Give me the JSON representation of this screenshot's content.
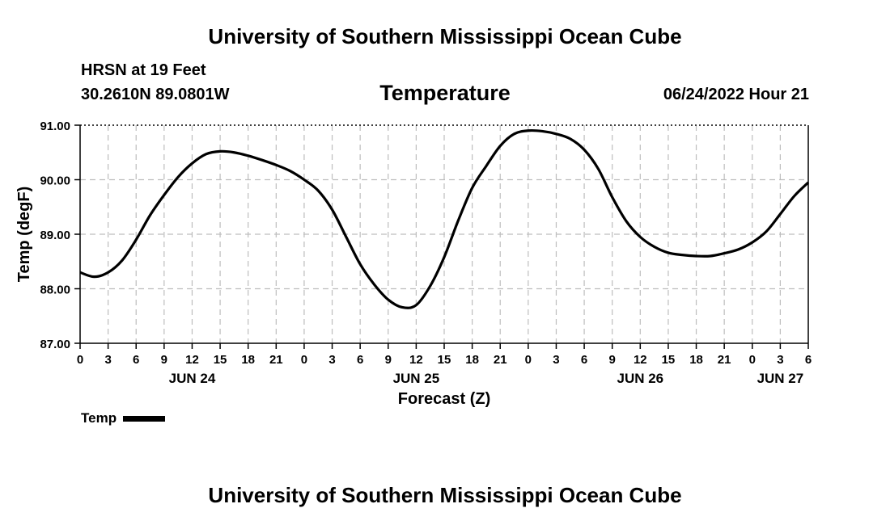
{
  "header": {
    "title": "University of Southern Mississippi Ocean Cube",
    "station": "HRSN at 19 Feet",
    "coords": "30.2610N  89.0801W",
    "chart_title": "Temperature",
    "datetime": "06/24/2022 Hour 21"
  },
  "footer": {
    "title": "University of Southern Mississippi Ocean Cube"
  },
  "legend": {
    "label": "Temp"
  },
  "colors": {
    "line": "#000000",
    "grid": "#bdbdbd",
    "background": "#ffffff"
  },
  "chart_data": {
    "type": "line",
    "title": "Temperature",
    "xlabel": "Forecast (Z)",
    "ylabel": "Temp (degF)",
    "ylim": [
      87.0,
      91.0
    ],
    "yticks": [
      "87.00",
      "88.00",
      "89.00",
      "90.00",
      "91.00"
    ],
    "xlim_hours": [
      0,
      78
    ],
    "x_tick_labels": [
      "0",
      "3",
      "6",
      "9",
      "12",
      "15",
      "18",
      "21",
      "0",
      "3",
      "6",
      "9",
      "12",
      "15",
      "18",
      "21",
      "0",
      "3",
      "6",
      "9",
      "12",
      "15",
      "18",
      "21",
      "0",
      "3",
      "6"
    ],
    "day_labels": [
      {
        "label": "JUN 24",
        "hour": 12
      },
      {
        "label": "JUN 25",
        "hour": 36
      },
      {
        "label": "JUN 26",
        "hour": 60
      },
      {
        "label": "JUN 27",
        "hour": 75
      }
    ],
    "grid": true,
    "series": [
      {
        "name": "Temp",
        "x_hours": [
          0,
          1.5,
          3,
          4.5,
          6,
          7.5,
          9,
          10.5,
          12,
          13.5,
          15,
          16.5,
          18,
          19.5,
          21,
          22.5,
          24,
          25.5,
          27,
          28.5,
          30,
          31.5,
          33,
          34.5,
          36,
          37.5,
          39,
          40.5,
          42,
          43.5,
          45,
          46.5,
          48,
          49.5,
          51,
          52.5,
          54,
          55.5,
          57,
          58.5,
          60,
          61.5,
          63,
          64.5,
          66,
          67.5,
          69,
          70.5,
          72,
          73.5,
          75,
          76.5,
          78
        ],
        "values": [
          88.3,
          88.22,
          88.3,
          88.52,
          88.9,
          89.35,
          89.72,
          90.05,
          90.3,
          90.47,
          90.52,
          90.5,
          90.44,
          90.36,
          90.27,
          90.16,
          90.0,
          89.8,
          89.45,
          88.95,
          88.45,
          88.08,
          87.8,
          87.66,
          87.7,
          88.05,
          88.58,
          89.25,
          89.85,
          90.25,
          90.62,
          90.84,
          90.9,
          90.89,
          90.84,
          90.75,
          90.55,
          90.2,
          89.68,
          89.24,
          88.95,
          88.77,
          88.66,
          88.62,
          88.6,
          88.6,
          88.65,
          88.72,
          88.85,
          89.05,
          89.37,
          89.7,
          89.95
        ]
      }
    ]
  }
}
